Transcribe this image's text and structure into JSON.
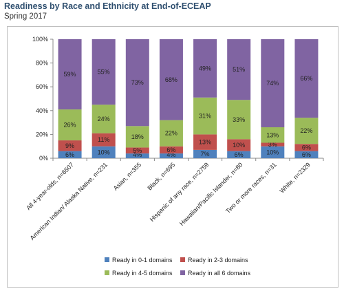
{
  "header": {
    "title": "Readiness by Race and Ethnicity at End-of-ECEAP",
    "subtitle": "Spring 2017"
  },
  "chart_data": {
    "type": "bar",
    "stacked": true,
    "percent_stacked": true,
    "categories": [
      "All 4-year-olds, n=6507",
      "American Indian/ Alaska Native, n=231",
      "Asian, n=355",
      "Black, n=695",
      "Hispanic of any race, n=2759",
      "Hawaiian/Pacific Islander, n=80",
      "Two or more races, n=31",
      "White, n=2329"
    ],
    "series": [
      {
        "name": "Ready in 0-1 domains",
        "color": "#4f81bd",
        "values": [
          6,
          10,
          4,
          4,
          7,
          6,
          10,
          6
        ],
        "labels": [
          "6%",
          "10%",
          "4%",
          "4%",
          "7%",
          "6%",
          "10%",
          "6%"
        ]
      },
      {
        "name": "Ready in 2-3 domains",
        "color": "#c0504d",
        "values": [
          9,
          11,
          5,
          6,
          13,
          10,
          3,
          6
        ],
        "labels": [
          "9%",
          "11%",
          "5%",
          "6%",
          "13%",
          "10%",
          "3%",
          "6%"
        ]
      },
      {
        "name": "Ready in 4-5 domains",
        "color": "#9bbb59",
        "values": [
          26,
          24,
          18,
          22,
          31,
          33,
          13,
          22
        ],
        "labels": [
          "26%",
          "24%",
          "18%",
          "22%",
          "31%",
          "33%",
          "13%",
          "22%"
        ]
      },
      {
        "name": "Ready in all 6 domains",
        "color": "#8064a2",
        "values": [
          59,
          55,
          73,
          68,
          49,
          51,
          74,
          66
        ],
        "labels": [
          "59%",
          "55%",
          "73%",
          "68%",
          "49%",
          "51%",
          "74%",
          "66%"
        ]
      }
    ],
    "ylim": [
      0,
      100
    ],
    "yticks": [
      "0%",
      "20%",
      "40%",
      "60%",
      "80%",
      "100%"
    ],
    "grid": false,
    "legend_position": "bottom"
  }
}
